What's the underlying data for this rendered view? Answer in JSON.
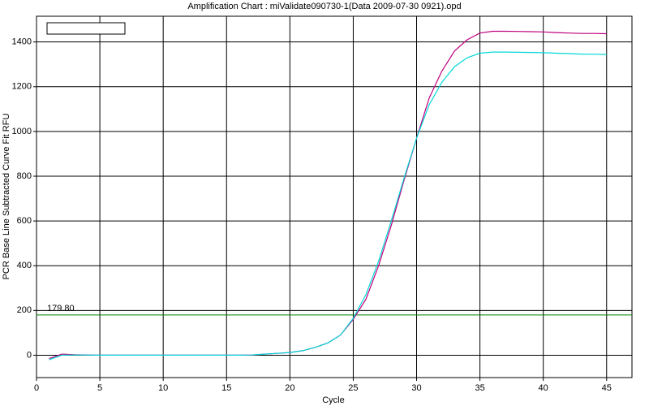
{
  "chart_data": {
    "type": "line",
    "title": "Amplification Chart : miValidate090730-1(Data 2009-07-30 0921).opd",
    "xlabel": "Cycle",
    "ylabel": "PCR Base Line Subtracted Curve Fit RFU",
    "x": [
      1,
      2,
      3,
      4,
      5,
      6,
      7,
      8,
      9,
      10,
      11,
      12,
      13,
      14,
      15,
      16,
      17,
      18,
      19,
      20,
      21,
      22,
      23,
      24,
      25,
      26,
      27,
      28,
      29,
      30,
      31,
      32,
      33,
      34,
      35,
      36,
      37,
      38,
      39,
      40,
      41,
      42,
      43,
      44,
      45
    ],
    "series": [
      {
        "color": "#c0007f",
        "values": [
          -15,
          5,
          2,
          1,
          0,
          0,
          0,
          0,
          0,
          0,
          0,
          0,
          0,
          0,
          0,
          0,
          1,
          5,
          8,
          12,
          20,
          35,
          55,
          90,
          160,
          250,
          400,
          580,
          780,
          970,
          1150,
          1270,
          1360,
          1410,
          1440,
          1448,
          1448,
          1447,
          1446,
          1445,
          1442,
          1440,
          1438,
          1438,
          1437
        ]
      },
      {
        "color": "#00d8d8",
        "values": [
          -20,
          0,
          1,
          1,
          0,
          0,
          0,
          0,
          0,
          0,
          0,
          0,
          0,
          0,
          0,
          0,
          1,
          5,
          8,
          12,
          20,
          35,
          55,
          90,
          165,
          270,
          420,
          600,
          790,
          970,
          1120,
          1220,
          1290,
          1330,
          1350,
          1355,
          1355,
          1354,
          1353,
          1352,
          1350,
          1348,
          1346,
          1345,
          1344
        ]
      }
    ],
    "threshold": {
      "value": 179.8,
      "label": "179.80",
      "color": "#008000"
    },
    "xlim": [
      0,
      47
    ],
    "ylim": [
      -100,
      1515
    ],
    "xticks": [
      0,
      5,
      10,
      15,
      20,
      25,
      30,
      35,
      40,
      45
    ],
    "yticks": [
      0,
      200,
      400,
      600,
      800,
      1000,
      1200,
      1400
    ],
    "grid": true
  }
}
